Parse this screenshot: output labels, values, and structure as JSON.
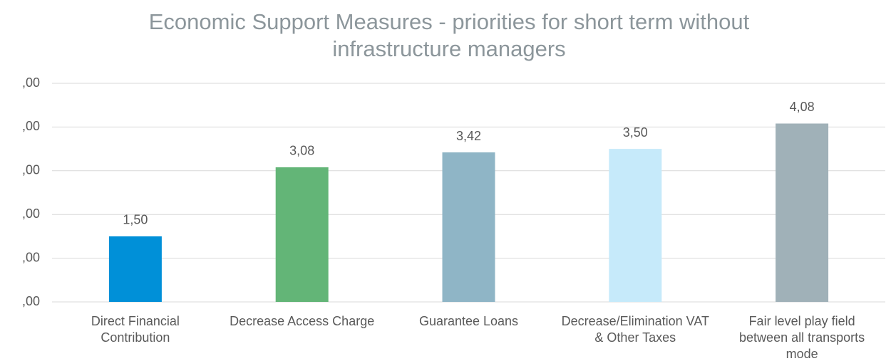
{
  "chart_data": {
    "type": "bar",
    "title": "Economic Support Measures - priorities for short term without infrastructure managers",
    "categories": [
      "Direct Financial Contribution",
      "Decrease Access Charge",
      "Guarantee Loans",
      "Decrease/Elimination VAT & Other Taxes",
      "Fair level play field between all transports mode"
    ],
    "values": [
      1.5,
      3.08,
      3.42,
      3.5,
      4.08
    ],
    "value_labels": [
      "1,50",
      "3,08",
      "3,42",
      "3,50",
      "4,08"
    ],
    "colors": [
      "#0090d8",
      "#63b577",
      "#8fb5c6",
      "#c6eafa",
      "#a0b1b8"
    ],
    "ylim": [
      0,
      5
    ],
    "yticks": [
      {
        "value": 0,
        "label": ",00"
      },
      {
        "value": 1,
        "label": ",00"
      },
      {
        "value": 2,
        "label": ",00"
      },
      {
        "value": 3,
        "label": ",00"
      },
      {
        "value": 4,
        "label": ",00"
      },
      {
        "value": 5,
        "label": ",00"
      }
    ],
    "grid": true
  }
}
